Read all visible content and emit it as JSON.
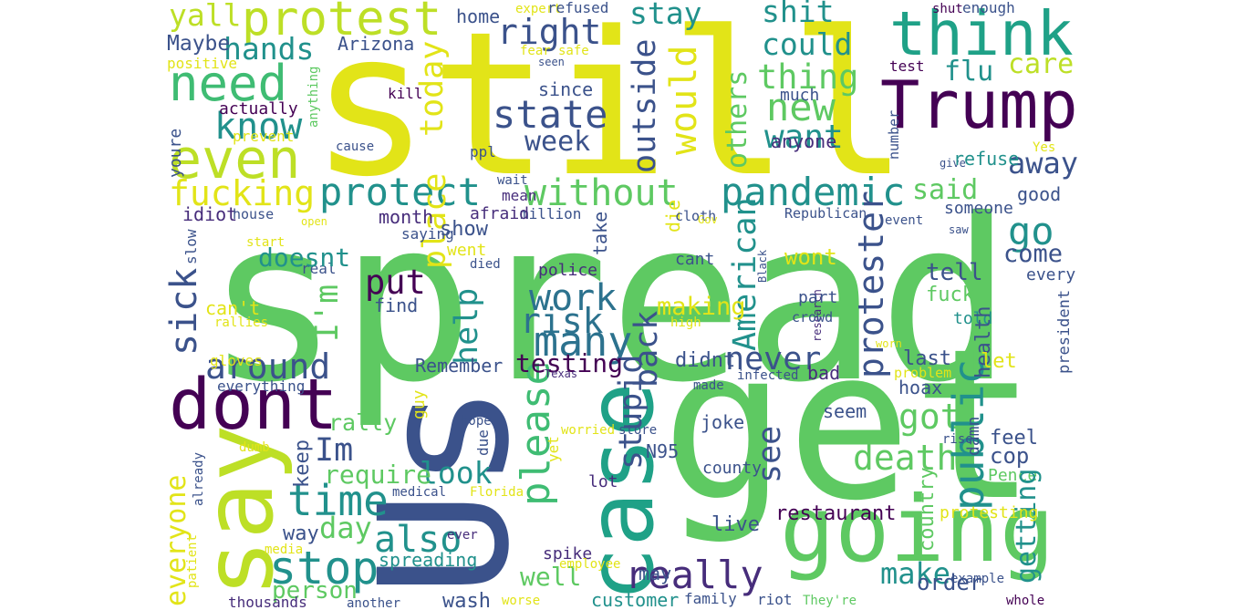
{
  "words": [
    "still",
    "spread",
    "get",
    "going",
    "Trump",
    "think",
    "protest",
    "need",
    "even",
    "dont",
    "say",
    "Us",
    "case",
    "stop",
    "time",
    "also",
    "day",
    "really",
    "many",
    "work",
    "risk",
    "state",
    "right",
    "new",
    "want",
    "thing",
    "could",
    "shit",
    "stay",
    "pandemic",
    "without",
    "protect",
    "fucking",
    "know",
    "hands",
    "yall",
    "Maybe",
    "positive",
    "home",
    "Arizona",
    "around",
    "sick",
    "put",
    "I'm",
    "Im",
    "look",
    "require",
    "please",
    "stupid",
    "back",
    "see",
    "death",
    "got",
    "public",
    "go",
    "care",
    "flu",
    "test",
    "away",
    "said",
    "good",
    "protester",
    "American",
    "never",
    "wont",
    "making",
    "help",
    "testing",
    "Remember",
    "today",
    "place",
    "would",
    "outside",
    "others",
    "since",
    "week",
    "anyone",
    "shut",
    "enough",
    "expert",
    "refused",
    "fear",
    "seen",
    "safe",
    "kill",
    "actually",
    "anything",
    "prevent",
    "cause",
    "youre",
    "much",
    "number",
    "ppl",
    "die",
    "wait",
    "mean",
    "million",
    "afraid",
    "month",
    "saying",
    "idiot",
    "house",
    "open",
    "start",
    "slow",
    "real",
    "rallies",
    "can't",
    "doesnt",
    "went",
    "died",
    "show",
    "take",
    "police",
    "cant",
    "find",
    "high",
    "cloth",
    "Gov",
    "Republican",
    "event",
    "someone",
    "saw",
    "every",
    "come",
    "tell",
    "fuck",
    "told",
    "health",
    "president",
    "Yes",
    "give",
    "refuse",
    "Black",
    "research",
    "part",
    "crowd",
    "worn",
    "problem",
    "last",
    "let",
    "hoax",
    "infected",
    "bad",
    "Texas",
    "didnt",
    "made",
    "gloves",
    "everything",
    "guy",
    "rally",
    "hope",
    "worried",
    "store",
    "joke",
    "seem",
    "due",
    "yet",
    "N95",
    "lot",
    "already",
    "dumb",
    "keep",
    "everyone",
    "medical",
    "Florida",
    "restaurant",
    "county",
    "feel",
    "cop",
    "damn",
    "Pence",
    "getting",
    "country",
    "protesting",
    "rise",
    "way",
    "person",
    "make",
    "order",
    "live",
    "spike",
    "well",
    "spreading",
    "wash",
    "ever",
    "employee",
    "customer",
    "family",
    "riot",
    "They're",
    "whole",
    "example",
    "may",
    "worse",
    "another",
    "thousands",
    "media",
    "patient"
  ]
}
